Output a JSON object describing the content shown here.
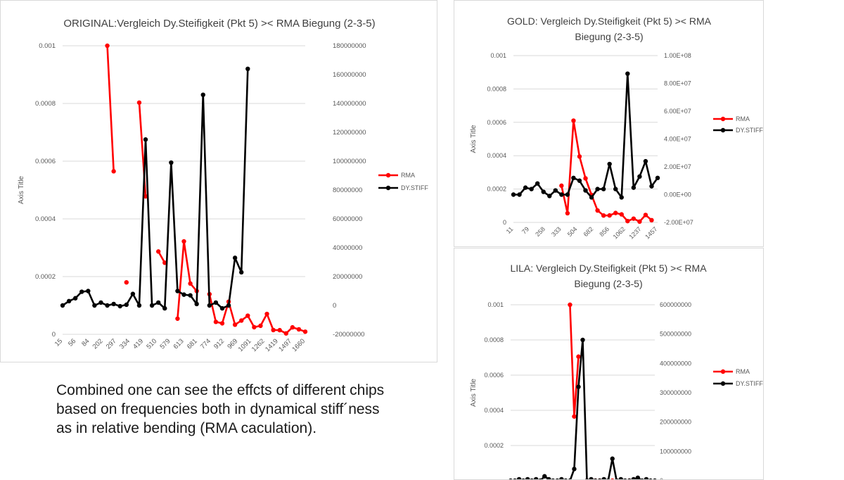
{
  "caption": {
    "lines": [
      "Combined one can see the effcts of different chips",
      "based on frequencies both in dynamical stiff´ness",
      "as in relative bending (RMA caculation)."
    ]
  },
  "colors": {
    "rma": "#ff0000",
    "stiff": "#000000",
    "grid": "#d9d9d9",
    "text": "#595959"
  },
  "chart_data": [
    {
      "type": "line",
      "title": "ORIGINAL:Vergleich Dy.Steifigkeit (Pkt 5) >< RMA Biegung (2-3-5)",
      "ylabel": "Axis Title",
      "xlabel": "",
      "y_ticks": [
        "0",
        "0.0002",
        "0.0004",
        "0.0006",
        "0.0008",
        "0.001"
      ],
      "ylim": [
        0,
        0.001
      ],
      "y2_ticks": [
        "-20000000",
        "0",
        "20000000",
        "40000000",
        "60000000",
        "80000000",
        "100000000",
        "120000000",
        "140000000",
        "160000000",
        "180000000"
      ],
      "y2lim": [
        -20000000,
        180000000
      ],
      "x_ticks": [
        "15",
        "56",
        "84",
        "202",
        "297",
        "334",
        "419",
        "510",
        "579",
        "613",
        "681",
        "774",
        "912",
        "969",
        "1091",
        "1262",
        "1419",
        "1497",
        "1660"
      ],
      "legend": "right",
      "grid": true,
      "series": [
        {
          "name": "RMA",
          "axis": "left",
          "values": [
            null,
            null,
            null,
            null,
            null,
            null,
            null,
            0.001,
            0.000565,
            null,
            0.00018,
            null,
            0.000803,
            0.000478,
            null,
            0.000287,
            0.000248,
            null,
            5.42e-05,
            0.000322,
            0.000176,
            0.00015,
            null,
            0.000139,
            4.31e-05,
            3.8e-05,
            0.000113,
            3.34e-05,
            4.77e-05,
            6.45e-05,
            2.47e-05,
            2.96e-05,
            7.06e-05,
            1.48e-05,
            1.44e-05,
            3.13e-06,
            2.42e-05,
            1.72e-05,
            9.11e-06
          ]
        },
        {
          "name": "DY.STIFF",
          "axis": "right",
          "values": [
            0,
            3000000,
            5000000,
            9500000,
            10000000,
            0,
            2000000,
            0,
            1000000,
            -500000,
            500000,
            8000000,
            0,
            115000000,
            0,
            2000000,
            -2000000,
            99000000,
            10000000,
            7500000,
            7000000,
            1000000,
            146000000,
            0,
            2000000,
            -2000000,
            0,
            33000000,
            23000000,
            164000000
          ]
        }
      ]
    },
    {
      "type": "line",
      "title": "GOLD: Vergleich Dy.Steifigkeit (Pkt 5) >< RMA Biegung (2-3-5)",
      "ylabel": "Axis Title",
      "xlabel": "",
      "y_ticks": [
        "0",
        "0.0002",
        "0.0004",
        "0.0006",
        "0.0008",
        "0.001"
      ],
      "ylim": [
        0,
        0.001
      ],
      "y2_ticks": [
        "-2.00E+07",
        "0.00E+00",
        "2.00E+07",
        "4.00E+07",
        "6.00E+07",
        "8.00E+07",
        "1.00E+08"
      ],
      "y2lim": [
        -20000000,
        100000000
      ],
      "x_ticks": [
        "11",
        "79",
        "258",
        "333",
        "504",
        "682",
        "856",
        "1062",
        "1237",
        "1457"
      ],
      "legend": "right",
      "grid": true,
      "series": [
        {
          "name": "RMA",
          "axis": "left",
          "values": [
            null,
            null,
            null,
            null,
            null,
            null,
            null,
            null,
            0.00022,
            5.5e-05,
            0.00061,
            0.000395,
            0.000264,
            0.000165,
            7.15e-05,
            4.14e-05,
            4.18e-05,
            5.64e-05,
            4.81e-05,
            7.9e-06,
            2.25e-05,
            5e-06,
            4.46e-05,
            1.34e-05
          ]
        },
        {
          "name": "DY.STIFF",
          "axis": "right",
          "values": [
            0,
            0,
            5000000,
            4000000,
            8000000,
            2000000,
            -1000000,
            3000000,
            0,
            0,
            12000000,
            10000000,
            3000000,
            -2000000,
            4000000,
            4000000,
            22000000,
            4000000,
            -2000000,
            87000000,
            5000000,
            13000000,
            24000000,
            6000000,
            12000000
          ]
        }
      ]
    },
    {
      "type": "line",
      "title": "LILA: Vergleich Dy.Steifigkeit (Pkt 5) >< RMA Biegung (2-3-5)",
      "ylabel": "Axis Title",
      "xlabel": "",
      "y_ticks": [
        "0.0002",
        "0.0004",
        "0.0006",
        "0.0008",
        "0.001"
      ],
      "ylim": [
        0,
        0.001
      ],
      "y2_ticks": [
        "0",
        "100000000",
        "200000000",
        "300000000",
        "400000000",
        "500000000",
        "600000000"
      ],
      "y2lim": [
        0,
        600000000
      ],
      "legend": "right",
      "grid": true,
      "series": [
        {
          "name": "RMA",
          "axis": "left",
          "values": [
            null,
            null,
            null,
            null,
            null,
            null,
            null,
            null,
            null,
            null,
            null,
            null,
            null,
            null,
            0.001,
            0.000365,
            0.000705,
            null,
            0.0,
            0.0,
            0.0,
            0.0,
            null,
            null,
            0.0,
            0.0,
            0.0,
            null,
            0.0,
            0.0
          ]
        },
        {
          "name": "DY.STIFF",
          "axis": "right",
          "values": [
            0,
            0,
            5000000,
            0,
            5000000,
            0,
            5000000,
            0,
            15000000,
            5000000,
            0,
            0,
            5000000,
            0,
            0,
            40000000,
            320000000,
            480000000,
            0,
            5000000,
            0,
            0,
            5000000,
            0,
            75000000,
            0,
            5000000,
            0,
            0,
            5000000,
            10000000,
            0,
            5000000,
            0,
            0
          ]
        }
      ]
    }
  ]
}
